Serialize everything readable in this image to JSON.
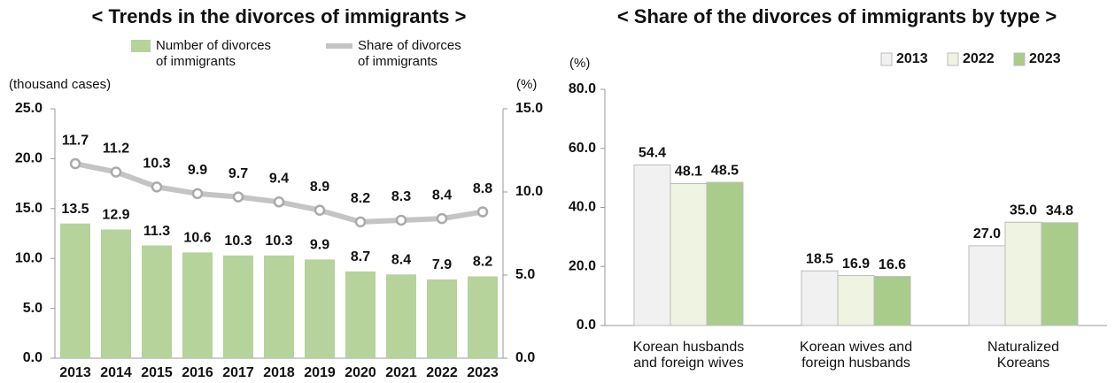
{
  "chart_data": [
    {
      "type": "combo",
      "title": "< Trends in the divorces of immigrants >",
      "y_label": "(thousand cases)",
      "y2_label": "(%)",
      "categories": [
        "2013",
        "2014",
        "2015",
        "2016",
        "2017",
        "2018",
        "2019",
        "2020",
        "2021",
        "2022",
        "2023"
      ],
      "series": [
        {
          "name": "Number of divorces\nof immigrants",
          "color": "#b5d39a",
          "kind": "bar",
          "values": [
            13.5,
            12.9,
            11.3,
            10.6,
            10.3,
            10.3,
            9.9,
            8.7,
            8.4,
            7.9,
            8.2
          ]
        },
        {
          "name": "Share of divorces\nof immigrants",
          "color": "#c4c4c4",
          "kind": "line",
          "axis": "y2",
          "values": [
            11.7,
            11.2,
            10.3,
            9.9,
            9.7,
            9.4,
            8.9,
            8.2,
            8.3,
            8.4,
            8.8
          ]
        }
      ],
      "ylim": [
        0,
        25
      ],
      "yticks": [
        {
          "value": 0,
          "label": "0.0"
        },
        {
          "value": 5,
          "label": "5.0"
        },
        {
          "value": 10,
          "label": "10.0"
        },
        {
          "value": 15,
          "label": "15.0"
        },
        {
          "value": 20,
          "label": "20.0"
        },
        {
          "value": 25,
          "label": "25.0"
        }
      ],
      "y2lim": [
        0,
        15
      ],
      "y2ticks": [
        {
          "value": 0,
          "label": "0.0"
        },
        {
          "value": 5,
          "label": "5.0"
        },
        {
          "value": 10,
          "label": "10.0"
        },
        {
          "value": 15,
          "label": "15.0"
        }
      ]
    },
    {
      "type": "bar",
      "title": "< Share of the divorces of immigrants by type >",
      "y_label": "(%)",
      "categories": [
        "Korean husbands\nand foreign wives",
        "Korean wives and\nforeign husbands",
        "Naturalized\nKoreans"
      ],
      "series": [
        {
          "name": "2013",
          "color": "#f1f1f1",
          "values": [
            54.4,
            18.5,
            27.0
          ],
          "value_labels": [
            "54.4",
            "18.5",
            "27.0"
          ]
        },
        {
          "name": "2022",
          "color": "#eef3e2",
          "values": [
            48.1,
            16.9,
            35.0
          ],
          "value_labels": [
            "48.1",
            "16.9",
            "35.0"
          ]
        },
        {
          "name": "2023",
          "color": "#a9cc8a",
          "values": [
            48.5,
            16.6,
            34.8
          ],
          "value_labels": [
            "48.5",
            "16.6",
            "34.8"
          ]
        }
      ],
      "ylim": [
        0,
        80
      ],
      "yticks": [
        {
          "value": 0,
          "label": "0.0"
        },
        {
          "value": 20,
          "label": "20.0"
        },
        {
          "value": 40,
          "label": "40.0"
        },
        {
          "value": 60,
          "label": "60.0"
        },
        {
          "value": 80,
          "label": "80.0"
        }
      ]
    }
  ]
}
